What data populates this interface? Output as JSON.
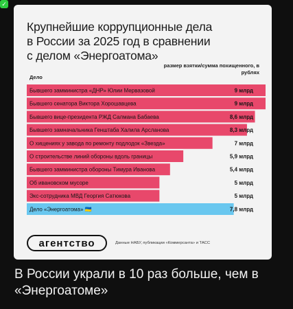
{
  "card": {
    "title": "Крупнейшие коррупционные дела\nв России за 2025 год в сравнении\nс делом «Энергоатома»",
    "col_left": "Дело",
    "col_right": "размер взятки/сумма похищенного, в рублях",
    "logo": "агентство",
    "source": "Данные НАБУ, публикации «Коммерсанта» и ТАСС"
  },
  "caption": "В России украли в 10 раз больше, чем в «Энергоатоме»",
  "colors": {
    "russia": "#e8486b",
    "ukraine": "#69c7ef",
    "card_bg": "#f3f3f3",
    "page_bg": "#0f0f0f"
  },
  "chart_data": {
    "type": "bar",
    "orientation": "horizontal",
    "unit": "млрд",
    "max": 9,
    "categories": [
      "Бывшего замминистра «ДНР» Юлии Мервазовой",
      "Бывшего сенатора Виктора Хорошавцева",
      "Бывшего вице-президента РЖД Салмана Бабаева",
      "Бывшего замначальника Генштаба Халила Арсланова",
      "О хищениях у завода по ремонту подлодок «Звезда»",
      "О строительстве линий обороны вдоль границы",
      "Бывшего замминистра обороны Тимура Иванова",
      "Об ивановском мусоре",
      "Экс-сотрудника МВД Георгия Сатюкова",
      "Дело «Энергоатома» 🇺🇦"
    ],
    "values": [
      9,
      9,
      8.6,
      8.3,
      7,
      5.9,
      5.4,
      5,
      5,
      7.8
    ],
    "value_labels": [
      "9 млрд",
      "9 млрд",
      "8,6 млрд",
      "8,3 млрд",
      "7 млрд",
      "5,9 млрд",
      "5,4 млрд",
      "5 млрд",
      "5 млрд",
      "7,8 млрд"
    ],
    "highlight_index": 9
  }
}
